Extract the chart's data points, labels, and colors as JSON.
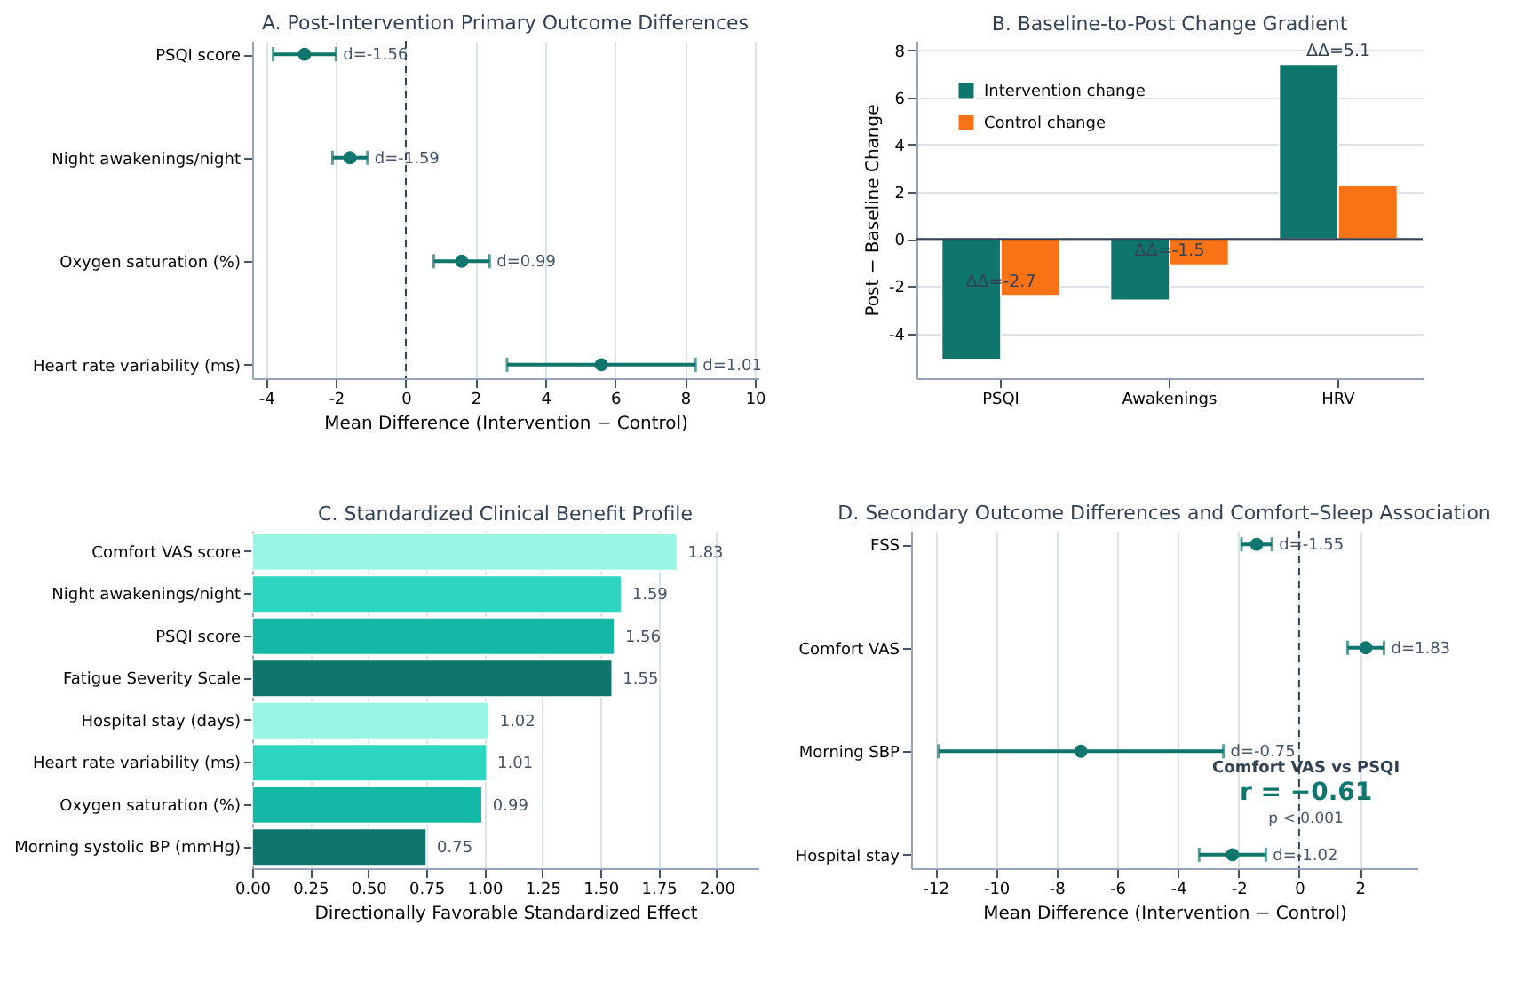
{
  "chart_data": [
    {
      "type": "scatter",
      "orientation": "horizontal",
      "title": "A. Post-Intervention Primary Outcome Differences",
      "xlabel": "Mean Difference (Intervention − Control)",
      "categories": [
        "PSQI score",
        "Night awakenings/night",
        "Oxygen saturation (%)",
        "Heart rate variability (ms)"
      ],
      "series": [
        {
          "color": "#0f766e",
          "values": [
            -2.9,
            -1.6,
            1.6,
            5.6
          ],
          "errors": [
            [
              -3.8,
              -2.0
            ],
            [
              -2.1,
              -1.1
            ],
            [
              0.8,
              2.4
            ],
            [
              2.9,
              8.3
            ]
          ]
        }
      ],
      "xlim": [
        -4.4,
        10.1
      ],
      "xticks": [
        -4,
        -2,
        0,
        2,
        4,
        6,
        8,
        10
      ],
      "grid": "x",
      "marker": "circle",
      "ref_lines": [
        {
          "axis": "x",
          "value": 0,
          "color": "#334155",
          "line_style": "dashed"
        }
      ],
      "annotations": [
        {
          "text": "d=-1.56",
          "x": -2.0,
          "y": "PSQI score"
        },
        {
          "text": "d=-1.59",
          "x": -1.1,
          "y": "Night awakenings/night"
        },
        {
          "text": "d=0.99",
          "x": 2.4,
          "y": "Oxygen saturation (%)"
        },
        {
          "text": "d=1.01",
          "x": 8.3,
          "y": "Heart rate variability (ms)"
        }
      ]
    },
    {
      "type": "bar",
      "title": "B. Baseline-to-Post Change Gradient",
      "ylabel": "Post − Baseline Change",
      "categories": [
        "PSQI",
        "Awakenings",
        "HRV"
      ],
      "series": [
        {
          "name": "Intervention change",
          "color": "#0f766e",
          "values": [
            -5.1,
            -2.6,
            7.4
          ]
        },
        {
          "name": "Control change",
          "color": "#f97316",
          "values": [
            -2.4,
            -1.1,
            2.3
          ]
        }
      ],
      "ylim": [
        -5.9,
        8.4
      ],
      "yticks": [
        -4,
        -2,
        0,
        2,
        4,
        6,
        8
      ],
      "grid": "y",
      "legend": "top left",
      "ref_lines": [
        {
          "axis": "y",
          "value": 0,
          "color": "#334155",
          "line_style": "solid"
        }
      ],
      "annotations": [
        {
          "text": "ΔΔ=-2.7",
          "x": "PSQI",
          "y": -2.4
        },
        {
          "text": "ΔΔ=-1.5",
          "x": "Awakenings",
          "y": -1.1
        },
        {
          "text": "ΔΔ=5.1",
          "x": "HRV",
          "y": 7.4
        }
      ]
    },
    {
      "type": "bar",
      "orientation": "horizontal",
      "title": "C. Standardized Clinical Benefit Profile",
      "xlabel": "Directionally Favorable Standardized Effect",
      "categories": [
        "Comfort VAS score",
        "Night awakenings/night",
        "PSQI score",
        "Fatigue Severity Scale",
        "Hospital stay (days)",
        "Heart rate variability (ms)",
        "Oxygen saturation (%)",
        "Morning systolic BP (mmHg)"
      ],
      "values": [
        1.83,
        1.59,
        1.56,
        1.55,
        1.02,
        1.01,
        0.99,
        0.75
      ],
      "colors": [
        "#99f6e4",
        "#2dd4bf",
        "#14b8a6",
        "#0f766e",
        "#99f6e4",
        "#2dd4bf",
        "#14b8a6",
        "#0f766e"
      ],
      "data_labels": true,
      "xlim": [
        0,
        2.18
      ],
      "xticks": [
        {
          "value": 0,
          "label": "0.00"
        },
        {
          "value": 0.25,
          "label": "0.25"
        },
        {
          "value": 0.5,
          "label": "0.50"
        },
        {
          "value": 0.75,
          "label": "0.75"
        },
        {
          "value": 1,
          "label": "1.00"
        },
        {
          "value": 1.25,
          "label": "1.25"
        },
        {
          "value": 1.5,
          "label": "1.50"
        },
        {
          "value": 1.75,
          "label": "1.75"
        },
        {
          "value": 2,
          "label": "2.00"
        }
      ],
      "grid": "x"
    },
    {
      "type": "scatter",
      "orientation": "horizontal",
      "title": "D. Secondary Outcome Differences and Comfort–Sleep Association",
      "xlabel": "Mean Difference (Intervention − Control)",
      "categories": [
        "FSS",
        "Comfort VAS",
        "Morning SBP",
        "Hospital stay"
      ],
      "series": [
        {
          "color": "#0f766e",
          "values": [
            -1.4,
            2.2,
            -7.2,
            -2.2
          ],
          "errors": [
            [
              -1.9,
              -0.9
            ],
            [
              1.6,
              2.8
            ],
            [
              -11.9,
              -2.5
            ],
            [
              -3.3,
              -1.1
            ]
          ]
        }
      ],
      "xlim": [
        -12.8,
        3.9
      ],
      "xticks": [
        -12,
        -10,
        -8,
        -6,
        -4,
        -2,
        0,
        2
      ],
      "grid": "x",
      "marker": "circle",
      "ref_lines": [
        {
          "axis": "x",
          "value": 0,
          "color": "#334155",
          "line_style": "dashed"
        }
      ],
      "annotations": [
        {
          "text": "d=-1.55",
          "x": -0.9,
          "y": "FSS"
        },
        {
          "text": "d=1.83",
          "x": 2.8,
          "y": "Comfort VAS"
        },
        {
          "text": "d=-0.75",
          "x": -2.5,
          "y": "Morning SBP"
        },
        {
          "text": "d=-1.02",
          "x": -1.1,
          "y": "Hospital stay"
        },
        "Comfort VAS vs PSQI",
        "r = −0.61",
        "p < 0.001"
      ]
    }
  ]
}
